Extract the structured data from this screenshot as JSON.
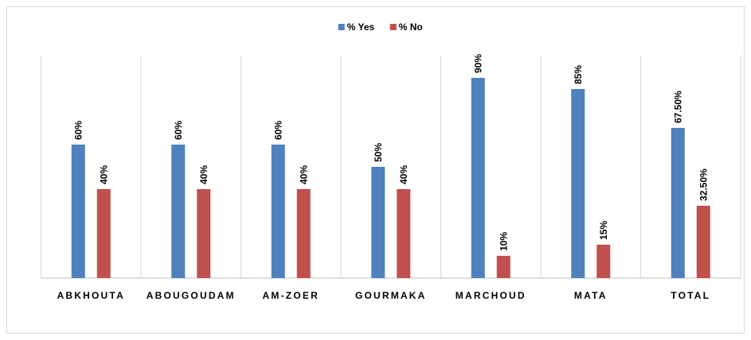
{
  "chart_data": {
    "type": "bar",
    "categories": [
      "ABKHOUTA",
      "ABOUGOUDAM",
      "AM-ZOER",
      "GOURMAKA",
      "MARCHOUD",
      "MATA",
      "TOTAL"
    ],
    "series": [
      {
        "name": "% Yes",
        "color": "#4f81bd",
        "values": [
          60,
          60,
          60,
          50,
          90,
          85,
          67.5
        ],
        "value_labels": [
          "60%",
          "60%",
          "60%",
          "50%",
          "90%",
          "85%",
          "67.50%"
        ]
      },
      {
        "name": "% No",
        "color": "#c0504d",
        "values": [
          40,
          40,
          40,
          40,
          10,
          15,
          32.5
        ],
        "value_labels": [
          "40%",
          "40%",
          "40%",
          "40%",
          "10%",
          "15%",
          "32.50%"
        ]
      }
    ],
    "ylim": [
      0,
      100
    ],
    "grid": true,
    "legend": "top"
  }
}
